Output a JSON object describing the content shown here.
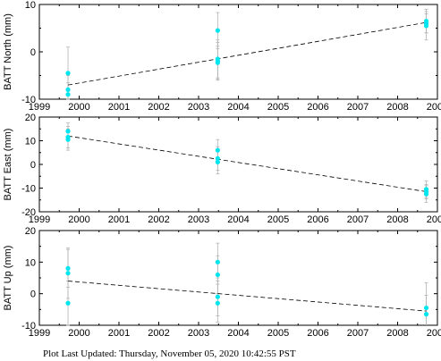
{
  "footer": "Plot Last Updated:   Thursday, November 05, 2020 10:42:55 PST",
  "colors": {
    "marker": "#00e5ee",
    "errorbar": "#b4b4b4",
    "trend": "#000000",
    "frame": "#000000"
  },
  "chart_data": [
    {
      "type": "scatter",
      "ylabel": "BATT North (mm)",
      "xlim": [
        1999,
        2009
      ],
      "ylim": [
        -10,
        10
      ],
      "xticks": [
        "1999",
        "2000",
        "2001",
        "2002",
        "2003",
        "2004",
        "2005",
        "2006",
        "2007",
        "2008",
        "2009"
      ],
      "yticks": [
        "10",
        "0",
        "-10"
      ],
      "show_xtick_labels": true,
      "points": [
        {
          "x": 1999.72,
          "y": -4.5,
          "err": 5.5
        },
        {
          "x": 1999.72,
          "y": -8.0,
          "err": 3.0
        },
        {
          "x": 1999.72,
          "y": -9.0,
          "err": 2.5
        },
        {
          "x": 2003.48,
          "y": 4.5,
          "err": 3.8
        },
        {
          "x": 2003.48,
          "y": -1.5,
          "err": 4.0
        },
        {
          "x": 2003.48,
          "y": -2.0,
          "err": 4.0
        },
        {
          "x": 2003.48,
          "y": -2.3,
          "err": 3.5
        },
        {
          "x": 2008.72,
          "y": 6.5,
          "err": 2.5
        },
        {
          "x": 2008.72,
          "y": 6.0,
          "err": 2.0
        },
        {
          "x": 2008.72,
          "y": 5.5,
          "err": 3.0
        }
      ],
      "trend": {
        "x": [
          1999.72,
          2008.72
        ],
        "y": [
          -7.0,
          6.2
        ]
      }
    },
    {
      "type": "scatter",
      "ylabel": "BATT East (mm)",
      "xlim": [
        1999,
        2009
      ],
      "ylim": [
        -20,
        20
      ],
      "xticks": [
        "1999",
        "2000",
        "2001",
        "2002",
        "2003",
        "2004",
        "2005",
        "2006",
        "2007",
        "2008",
        "2009"
      ],
      "yticks": [
        "20",
        "10",
        "0",
        "-10",
        "-20"
      ],
      "show_xtick_labels": true,
      "points": [
        {
          "x": 1999.72,
          "y": 14.0,
          "err": 3.5
        },
        {
          "x": 1999.72,
          "y": 11.5,
          "err": 4.5
        },
        {
          "x": 1999.72,
          "y": 10.5,
          "err": 4.5
        },
        {
          "x": 2003.48,
          "y": 6.0,
          "err": 4.5
        },
        {
          "x": 2003.48,
          "y": 2.5,
          "err": 5.0
        },
        {
          "x": 2003.48,
          "y": 1.0,
          "err": 5.0
        },
        {
          "x": 2008.72,
          "y": -10.5,
          "err": 3.5
        },
        {
          "x": 2008.72,
          "y": -11.5,
          "err": 3.0
        },
        {
          "x": 2008.72,
          "y": -12.5,
          "err": 3.5
        }
      ],
      "trend": {
        "x": [
          1999.72,
          2008.72
        ],
        "y": [
          12.0,
          -11.5
        ]
      }
    },
    {
      "type": "scatter",
      "ylabel": "BATT Up (mm)",
      "xlim": [
        1999,
        2009
      ],
      "ylim": [
        -10,
        20
      ],
      "xticks": [
        "1999",
        "2000",
        "2001",
        "2002",
        "2003",
        "2004",
        "2005",
        "2006",
        "2007",
        "2008",
        "2009"
      ],
      "yticks": [
        "20",
        "10",
        "0",
        "-10"
      ],
      "show_xtick_labels": true,
      "points": [
        {
          "x": 1999.72,
          "y": 8.0,
          "err": 6.0
        },
        {
          "x": 1999.72,
          "y": 6.5,
          "err": 8.0
        },
        {
          "x": 1999.72,
          "y": -3.0,
          "err": 7.0
        },
        {
          "x": 2003.48,
          "y": 10.0,
          "err": 6.0
        },
        {
          "x": 2003.48,
          "y": 6.0,
          "err": 6.0
        },
        {
          "x": 2003.48,
          "y": -1.0,
          "err": 6.0
        },
        {
          "x": 2003.48,
          "y": -3.0,
          "err": 6.0
        },
        {
          "x": 2008.72,
          "y": -4.5,
          "err": 8.0
        },
        {
          "x": 2008.72,
          "y": -6.5,
          "err": 6.0
        }
      ],
      "trend": {
        "x": [
          1999.72,
          2008.72
        ],
        "y": [
          4.0,
          -5.5
        ]
      }
    }
  ]
}
